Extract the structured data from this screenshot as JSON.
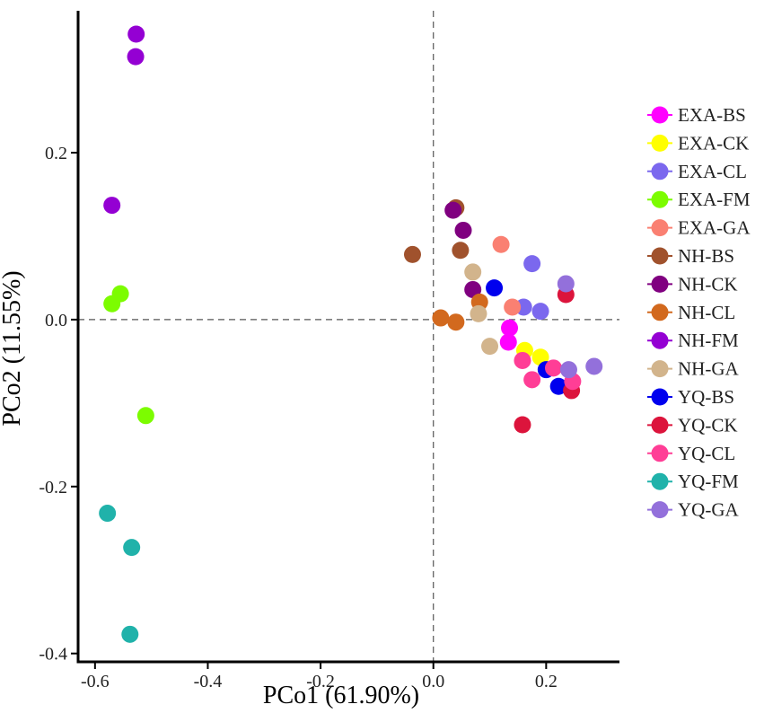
{
  "chart_data": {
    "type": "scatter",
    "title": "",
    "xlabel": "PCo1 (61.90%)",
    "ylabel": "PCo2 (11.55%)",
    "xlim": [
      -0.63,
      0.33
    ],
    "ylim": [
      -0.41,
      0.37
    ],
    "xticks": [
      -0.6,
      -0.4,
      -0.2,
      0.0,
      0.2
    ],
    "yticks": [
      -0.4,
      -0.2,
      0.0,
      0.2
    ],
    "xtick_labels": [
      "-0.6",
      "-0.4",
      "-0.2",
      "0.0",
      "0.2"
    ],
    "ytick_labels": [
      "-0.4",
      "-0.2",
      "0.0",
      "0.2"
    ],
    "reference_lines": {
      "x": 0.0,
      "y": 0.0,
      "style": "dashed"
    },
    "legend_position": "right",
    "series": [
      {
        "name": "EXA-BS",
        "color": "#FF00FF",
        "points": [
          [
            0.135,
            -0.01
          ],
          [
            0.133,
            -0.027
          ]
        ]
      },
      {
        "name": "EXA-CK",
        "color": "#FFFF00",
        "points": [
          [
            0.162,
            -0.037
          ],
          [
            0.19,
            -0.045
          ]
        ]
      },
      {
        "name": "EXA-CL",
        "color": "#7B68EE",
        "points": [
          [
            0.175,
            0.067
          ],
          [
            0.16,
            0.015
          ],
          [
            0.19,
            0.01
          ]
        ]
      },
      {
        "name": "EXA-FM",
        "color": "#7CFC00",
        "points": [
          [
            -0.555,
            0.031
          ],
          [
            -0.57,
            0.019
          ],
          [
            -0.51,
            -0.115
          ]
        ]
      },
      {
        "name": "EXA-GA",
        "color": "#FA8072",
        "points": [
          [
            0.12,
            0.09
          ],
          [
            0.14,
            0.015
          ]
        ]
      },
      {
        "name": "NH-BS",
        "color": "#A0522D",
        "points": [
          [
            0.04,
            0.134
          ],
          [
            -0.037,
            0.078
          ],
          [
            0.048,
            0.083
          ]
        ]
      },
      {
        "name": "NH-CK",
        "color": "#800080",
        "points": [
          [
            0.035,
            0.131
          ],
          [
            0.053,
            0.107
          ],
          [
            0.07,
            0.036
          ]
        ]
      },
      {
        "name": "NH-CL",
        "color": "#D2691E",
        "points": [
          [
            0.013,
            0.002
          ],
          [
            0.04,
            -0.003
          ],
          [
            0.082,
            0.021
          ]
        ]
      },
      {
        "name": "NH-FM",
        "color": "#9400D3",
        "points": [
          [
            -0.527,
            0.342
          ],
          [
            -0.528,
            0.315
          ],
          [
            -0.57,
            0.137
          ]
        ]
      },
      {
        "name": "NH-GA",
        "color": "#D2B48C",
        "points": [
          [
            0.07,
            0.057
          ],
          [
            0.08,
            0.007
          ],
          [
            0.1,
            -0.032
          ]
        ]
      },
      {
        "name": "YQ-BS",
        "color": "#0000EE",
        "points": [
          [
            0.108,
            0.038
          ],
          [
            0.2,
            -0.06
          ],
          [
            0.222,
            -0.08
          ]
        ]
      },
      {
        "name": "YQ-CK",
        "color": "#DC143C",
        "points": [
          [
            0.235,
            0.03
          ],
          [
            0.158,
            -0.126
          ],
          [
            0.245,
            -0.085
          ]
        ]
      },
      {
        "name": "YQ-CL",
        "color": "#FF3E96",
        "points": [
          [
            0.158,
            -0.049
          ],
          [
            0.175,
            -0.072
          ],
          [
            0.213,
            -0.058
          ],
          [
            0.247,
            -0.074
          ]
        ]
      },
      {
        "name": "YQ-FM",
        "color": "#20B2AA",
        "points": [
          [
            -0.578,
            -0.232
          ],
          [
            -0.535,
            -0.273
          ],
          [
            -0.538,
            -0.377
          ]
        ]
      },
      {
        "name": "YQ-GA",
        "color": "#9370DB",
        "points": [
          [
            0.235,
            0.043
          ],
          [
            0.24,
            -0.06
          ],
          [
            0.285,
            -0.056
          ]
        ]
      }
    ]
  }
}
